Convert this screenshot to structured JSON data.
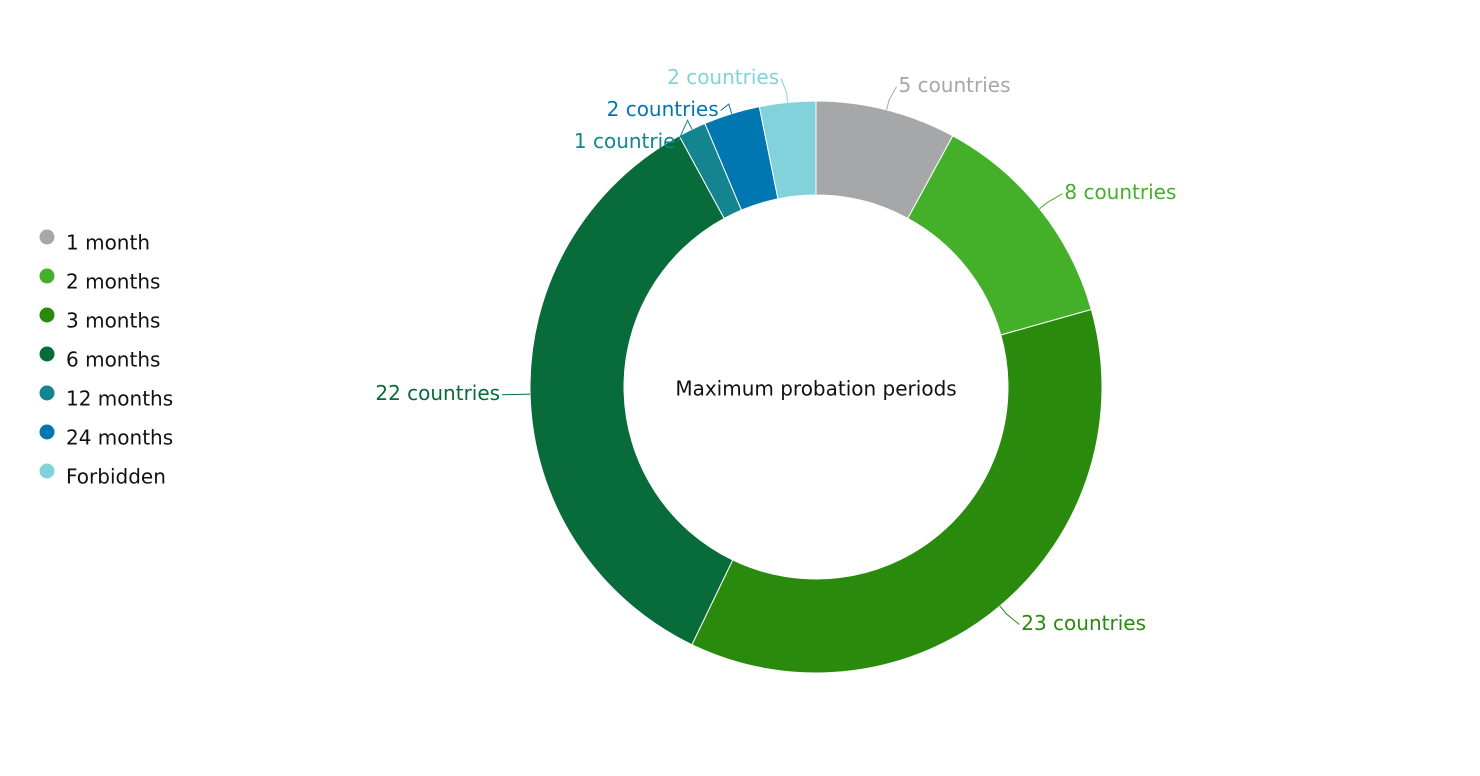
{
  "chart_data": {
    "type": "donut",
    "title": "Maximum probation periods",
    "categories": [
      "1 month",
      "2 months",
      "3 months",
      "6 months",
      "12 months",
      "24 months",
      "Forbidden"
    ],
    "values": [
      5,
      8,
      23,
      22,
      1,
      2,
      2
    ],
    "value_labels": [
      "5 countries",
      "8 countries",
      "23 countries",
      "22 countries",
      "1 countrie",
      "2 countries",
      "2 countries"
    ],
    "colors": [
      "#a6a7a8",
      "#44b02a",
      "#2a8a0e",
      "#076b3a",
      "#138490",
      "#0077b0",
      "#82d2dc"
    ],
    "legend": "left"
  }
}
